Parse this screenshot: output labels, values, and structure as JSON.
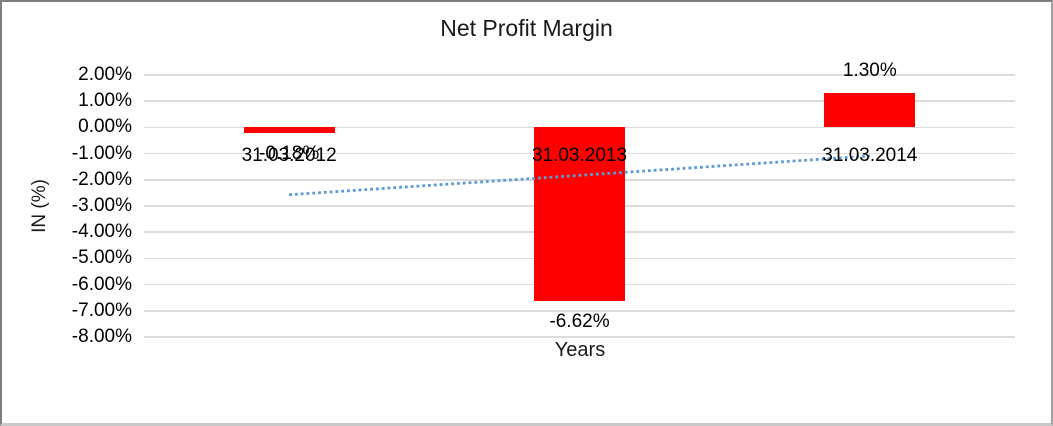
{
  "chart_data": {
    "type": "bar",
    "title": "Net Profit Margin",
    "xlabel": "Years",
    "ylabel": "IN (%)",
    "categories": [
      "31.03.2012",
      "31.03.2013",
      "31.03.2014"
    ],
    "values": [
      -0.18,
      -6.62,
      1.3
    ],
    "data_labels": [
      "-0.18%",
      "-6.62%",
      "1.30%"
    ],
    "y_tick_values": [
      2,
      1,
      0,
      -1,
      -2,
      -3,
      -4,
      -5,
      -6,
      -7,
      -8
    ],
    "y_tick_labels": [
      "2.00%",
      "1.00%",
      "0.00%",
      "-1.00%",
      "-2.00%",
      "-3.00%",
      "-4.00%",
      "-5.00%",
      "-6.00%",
      "-7.00%",
      "-8.00%"
    ],
    "ylim": [
      -8,
      2
    ],
    "grid": true,
    "legend_position": "none",
    "bar_color": "#FF0000",
    "grid_color": "#DCDCDC",
    "trendline": {
      "type": "linear",
      "style": "dotted",
      "color": "#5B9BD5",
      "start_value": -2.57,
      "end_value": -1.09
    }
  }
}
